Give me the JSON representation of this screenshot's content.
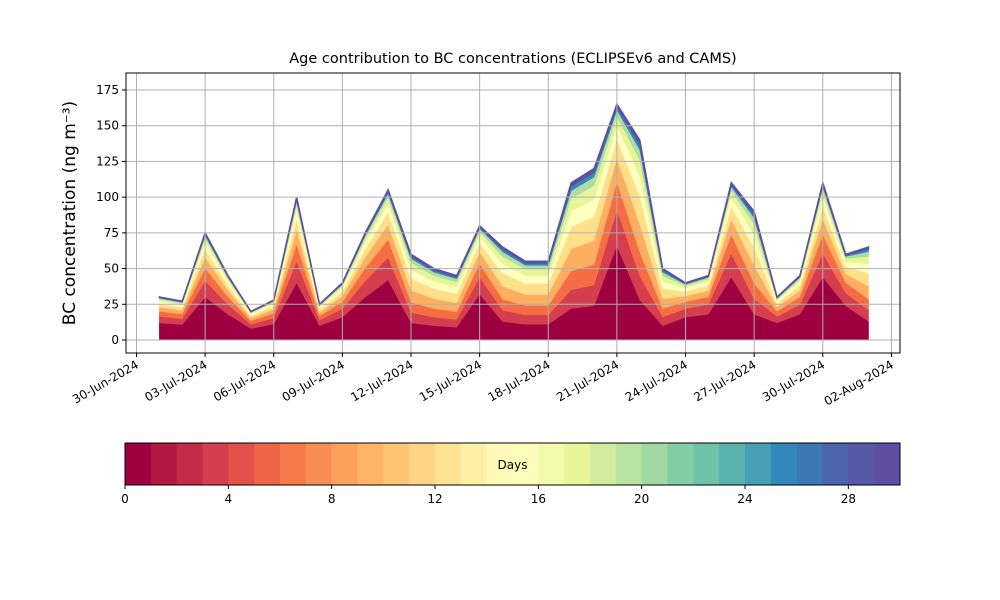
{
  "chart_data": {
    "type": "stacked_area",
    "title": "Age contribution to BC concentrations (ECLIPSEv6 and CAMS)",
    "y_label": "BC concentration (ng m⁻³)",
    "x": [
      "2024-07-01",
      "2024-07-02",
      "2024-07-03",
      "2024-07-04",
      "2024-07-05",
      "2024-07-06",
      "2024-07-07",
      "2024-07-08",
      "2024-07-09",
      "2024-07-10",
      "2024-07-11",
      "2024-07-12",
      "2024-07-13",
      "2024-07-14",
      "2024-07-15",
      "2024-07-16",
      "2024-07-17",
      "2024-07-18",
      "2024-07-19",
      "2024-07-20",
      "2024-07-21",
      "2024-07-22",
      "2024-07-23",
      "2024-07-24",
      "2024-07-25",
      "2024-07-26",
      "2024-07-27",
      "2024-07-28",
      "2024-07-29",
      "2024-07-30",
      "2024-07-31",
      "2024-08-01"
    ],
    "series": [
      {
        "color": "#9e0142",
        "values": [
          12,
          10.8,
          30,
          18,
          8,
          11.2,
          40,
          10,
          16,
          30,
          42,
          12,
          10,
          9,
          32,
          13,
          11,
          11,
          22,
          24,
          66,
          28,
          10,
          16,
          18,
          44,
          18,
          12,
          18,
          44,
          24,
          13
        ]
      },
      {
        "color": "#d53e4f",
        "values": [
          4.5,
          4.1,
          11.3,
          6.8,
          3,
          4.2,
          15,
          3.8,
          6,
          11.3,
          15.8,
          7.2,
          6,
          5.4,
          12,
          7.8,
          6.6,
          6.6,
          13.2,
          14.4,
          24.8,
          16.8,
          6,
          6,
          6.8,
          16.5,
          10.8,
          4.5,
          6.8,
          16.5,
          9,
          7.8
        ]
      },
      {
        "color": "#f46d43",
        "values": [
          3.6,
          3.2,
          9,
          5.4,
          2.4,
          3.4,
          12,
          3,
          4.8,
          9,
          12.6,
          7.2,
          6,
          5.4,
          9.6,
          7.8,
          6.6,
          6.6,
          13.2,
          14.4,
          19.8,
          16.8,
          6,
          4.8,
          5.4,
          13.2,
          10.8,
          3.6,
          5.4,
          13.2,
          7.2,
          7.8
        ]
      },
      {
        "color": "#fdae61",
        "values": [
          3,
          2.7,
          7.5,
          4.5,
          2,
          2.8,
          10,
          2.5,
          4,
          7.5,
          10.5,
          8.4,
          7,
          6.3,
          8,
          9.1,
          7.7,
          7.7,
          15.4,
          16.8,
          16.5,
          19.6,
          7,
          4,
          4.5,
          11,
          12.6,
          3,
          4.5,
          11,
          6,
          9.1
        ]
      },
      {
        "color": "#fee08b",
        "values": [
          2.4,
          2.2,
          6,
          3.6,
          1.6,
          2.2,
          8,
          2,
          3.2,
          6,
          8.4,
          8.4,
          7,
          6.3,
          6.4,
          9.1,
          7.7,
          7.7,
          15.4,
          16.8,
          13.2,
          19.6,
          7,
          3.2,
          3.6,
          8.8,
          12.6,
          2.4,
          3.6,
          8.8,
          4.8,
          9.1
        ]
      },
      {
        "color": "#ffffbf",
        "values": [
          1.8,
          1.6,
          4.5,
          2.7,
          1.2,
          1.7,
          6,
          1.5,
          2.4,
          4.5,
          6.3,
          6,
          5,
          4.5,
          4.8,
          6.5,
          5.5,
          5.5,
          11,
          12,
          9.9,
          14,
          5,
          2.4,
          2.7,
          6.6,
          9,
          1.8,
          2.7,
          6.6,
          3.6,
          6.5
        ]
      },
      {
        "color": "#e6f598",
        "values": [
          1.2,
          1.1,
          3,
          1.8,
          0.8,
          1.1,
          4,
          1,
          1.6,
          3,
          4.2,
          4.8,
          4,
          3.6,
          3.2,
          5.2,
          4.4,
          4.4,
          8.8,
          9.6,
          6.6,
          11.2,
          4,
          1.6,
          1.8,
          4.4,
          7.2,
          1.2,
          1.8,
          4.4,
          2.4,
          5.2
        ]
      },
      {
        "color": "#abdda4",
        "values": [
          0.8,
          0.7,
          1.9,
          1.1,
          0.5,
          0.7,
          2.5,
          0.6,
          1,
          1.9,
          2.6,
          3,
          2.5,
          2.3,
          2,
          3.3,
          2.8,
          2.8,
          5.5,
          6,
          4.1,
          7,
          2.5,
          1,
          1.1,
          2.8,
          4.5,
          0.8,
          1.1,
          2.8,
          1.5,
          3.3
        ]
      },
      {
        "color": "#3288bd",
        "values": [
          0.5,
          0.4,
          1.1,
          0.7,
          0.3,
          0.4,
          1.5,
          0.4,
          0.6,
          1.1,
          1.6,
          1.8,
          1.5,
          1.4,
          1.2,
          2,
          1.7,
          1.7,
          3.3,
          3.6,
          2.5,
          4.2,
          1.5,
          0.6,
          0.7,
          1.7,
          2.7,
          0.5,
          0.7,
          1.7,
          0.9,
          2
        ]
      },
      {
        "color": "#5e4fa2",
        "values": [
          0.3,
          0.3,
          0.8,
          0.5,
          0.2,
          0.3,
          1,
          0.3,
          0.4,
          0.8,
          1.1,
          1.2,
          1,
          0.9,
          0.8,
          1.3,
          1.1,
          1.1,
          2.2,
          2.4,
          1.7,
          2.8,
          1,
          0.4,
          0.5,
          1.1,
          1.8,
          0.3,
          0.5,
          1.1,
          0.6,
          1.3
        ]
      }
    ],
    "xlim": [
      "2024-06-29T13:00",
      "2024-08-02T09:00"
    ],
    "xticks": [
      {
        "value": "2024-06-30",
        "label": "30-Jun-2024"
      },
      {
        "value": "2024-07-03",
        "label": "03-Jul-2024"
      },
      {
        "value": "2024-07-06",
        "label": "06-Jul-2024"
      },
      {
        "value": "2024-07-09",
        "label": "09-Jul-2024"
      },
      {
        "value": "2024-07-12",
        "label": "12-Jul-2024"
      },
      {
        "value": "2024-07-15",
        "label": "15-Jul-2024"
      },
      {
        "value": "2024-07-18",
        "label": "18-Jul-2024"
      },
      {
        "value": "2024-07-21",
        "label": "21-Jul-2024"
      },
      {
        "value": "2024-07-24",
        "label": "24-Jul-2024"
      },
      {
        "value": "2024-07-27",
        "label": "27-Jul-2024"
      },
      {
        "value": "2024-07-30",
        "label": "30-Jul-2024"
      },
      {
        "value": "2024-08-02",
        "label": "02-Aug-2024"
      }
    ],
    "ylim": [
      -9.1,
      186.9
    ],
    "yticks": [
      0,
      25,
      50,
      75,
      100,
      125,
      150,
      175
    ],
    "grid": true,
    "colorbar": {
      "label": "Days",
      "boundaries": [
        0,
        1,
        2,
        3,
        4,
        5,
        6,
        7,
        8,
        9,
        10,
        11,
        12,
        13,
        14,
        15,
        16,
        17,
        18,
        19,
        20,
        21,
        22,
        23,
        24,
        25,
        26,
        27,
        28,
        29,
        30
      ],
      "colors": [
        "#9e0142",
        "#b2183f",
        "#c52a4a",
        "#d53e4f",
        "#e2514a",
        "#ec6445",
        "#f67b4a",
        "#f88d52",
        "#fba15b",
        "#fdb466",
        "#fec574",
        "#fed683",
        "#fee491",
        "#fff0a6",
        "#fffab8",
        "#fbfdb9",
        "#f2faab",
        "#e6f598",
        "#d0ec9c",
        "#b9e3a0",
        "#a0d8a4",
        "#84cda5",
        "#6cc3a5",
        "#58b2ab",
        "#469fb4",
        "#3288bd",
        "#3e77b5",
        "#4d65ad",
        "#5658a8",
        "#5e4fa2"
      ],
      "ticks": [
        0,
        4,
        8,
        12,
        16,
        20,
        24,
        28
      ]
    }
  }
}
